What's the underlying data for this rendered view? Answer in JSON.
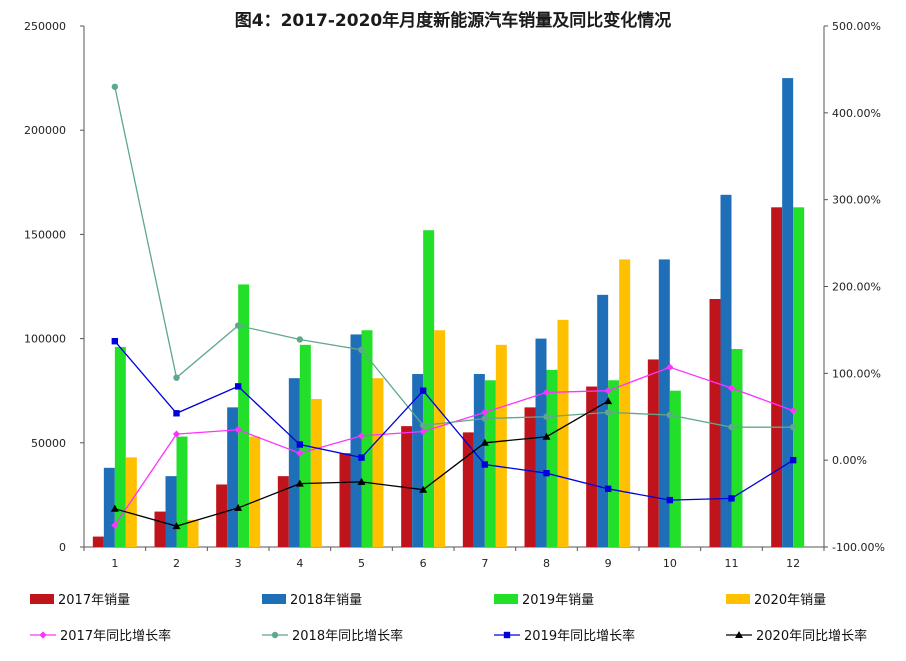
{
  "chart_data": {
    "type": "bar",
    "title": "图4：2017-2020年月度新能源汽车销量及同比变化情况",
    "categories": [
      "1",
      "2",
      "3",
      "4",
      "5",
      "6",
      "7",
      "8",
      "9",
      "10",
      "11",
      "12"
    ],
    "y_left": {
      "ylim": [
        0,
        250000
      ],
      "ticks": [
        "0",
        "50000",
        "100000",
        "150000",
        "200000",
        "250000"
      ]
    },
    "y_right": {
      "ylim": [
        -100,
        500
      ],
      "ticks": [
        "-100.00%",
        "0.00%",
        "100.00%",
        "200.00%",
        "300.00%",
        "400.00%",
        "500.00%"
      ]
    },
    "bar_series": [
      {
        "name": "2017年销量",
        "color": "#C0141C",
        "values": [
          5000,
          17000,
          30000,
          34000,
          45000,
          58000,
          55000,
          67000,
          77000,
          90000,
          119000,
          163000
        ]
      },
      {
        "name": "2018年销量",
        "color": "#1F6FB8",
        "values": [
          38000,
          34000,
          67000,
          81000,
          102000,
          83000,
          83000,
          100000,
          121000,
          138000,
          169000,
          225000
        ]
      },
      {
        "name": "2019年销量",
        "color": "#22E02A",
        "values": [
          96000,
          53000,
          126000,
          97000,
          104000,
          152000,
          80000,
          85000,
          80000,
          75000,
          95000,
          163000
        ]
      },
      {
        "name": "2020年销量",
        "color": "#FFC000",
        "values": [
          43000,
          13000,
          53000,
          71000,
          81000,
          104000,
          97000,
          109000,
          138000,
          null,
          null,
          null
        ]
      }
    ],
    "line_series": [
      {
        "name": "2017年同比增长率",
        "color": "#FF33FF",
        "marker": "diamond",
        "values": [
          -75,
          30,
          35,
          8,
          28,
          33,
          55,
          78,
          80,
          107,
          83,
          57
        ]
      },
      {
        "name": "2018年同比增长率",
        "color": "#5FA88A",
        "marker": "circle",
        "values": [
          430,
          95,
          155,
          139,
          127,
          40,
          48,
          50,
          55,
          52,
          38,
          38
        ]
      },
      {
        "name": "2019年同比增长率",
        "color": "#0000DD",
        "marker": "square",
        "values": [
          137,
          54,
          85,
          18,
          3,
          80,
          -5,
          -15,
          -33,
          -46,
          -44,
          0
        ]
      },
      {
        "name": "2020年同比增长率",
        "color": "#000000",
        "marker": "triangle",
        "values": [
          -56,
          -76,
          -55,
          -27,
          -25,
          -34,
          20,
          27,
          68,
          null,
          null,
          null
        ]
      }
    ]
  }
}
